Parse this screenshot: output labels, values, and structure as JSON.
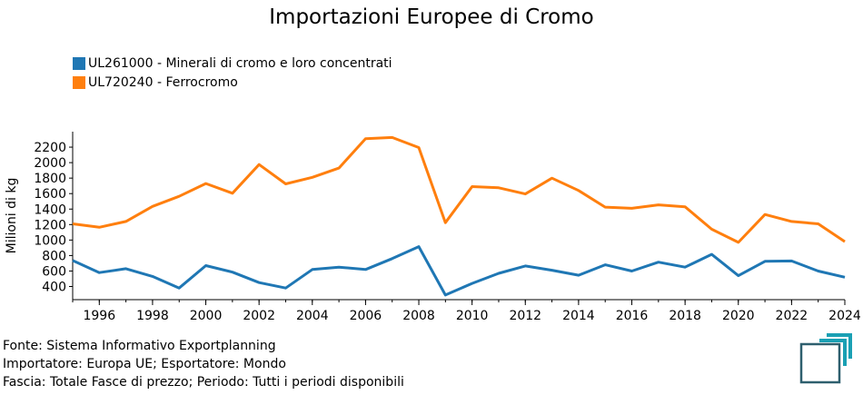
{
  "chart_data": {
    "type": "line",
    "title": "Importazioni Europee di Cromo",
    "ylabel": "Milioni di kg",
    "xlabel": "",
    "x": [
      1995,
      1996,
      1997,
      1998,
      1999,
      2000,
      2001,
      2002,
      2003,
      2004,
      2005,
      2006,
      2007,
      2008,
      2009,
      2010,
      2011,
      2012,
      2013,
      2014,
      2015,
      2016,
      2017,
      2018,
      2019,
      2020,
      2021,
      2022,
      2023,
      2024
    ],
    "x_ticks": [
      "1996",
      "1998",
      "2000",
      "2002",
      "2004",
      "2006",
      "2008",
      "2010",
      "2012",
      "2014",
      "2016",
      "2018",
      "2020",
      "2022",
      "2024"
    ],
    "y_ticks": [
      "400",
      "600",
      "800",
      "1000",
      "1200",
      "1400",
      "1600",
      "1800",
      "2000",
      "2200"
    ],
    "ylim": [
      230,
      2400
    ],
    "xlim": [
      1995,
      2024
    ],
    "grid": false,
    "legend_position": "top-left",
    "series": [
      {
        "name": "UL261000 - Minerali di cromo e loro concentrati",
        "color": "#1f77b4",
        "values": [
          735,
          580,
          630,
          530,
          380,
          670,
          585,
          450,
          380,
          620,
          650,
          620,
          760,
          915,
          290,
          440,
          570,
          665,
          610,
          545,
          680,
          600,
          715,
          650,
          815,
          540,
          725,
          730,
          600,
          520
        ]
      },
      {
        "name": "UL720240 - Ferrocromo",
        "color": "#ff7f0e",
        "values": [
          1210,
          1165,
          1240,
          1435,
          1565,
          1730,
          1605,
          1975,
          1725,
          1810,
          1930,
          2310,
          2325,
          2195,
          1225,
          1690,
          1675,
          1595,
          1800,
          1640,
          1425,
          1410,
          1455,
          1430,
          1140,
          970,
          1330,
          1240,
          1210,
          980
        ]
      }
    ]
  },
  "footer": {
    "line1": "Fonte: Sistema Informativo Exportplanning",
    "line2": "Importatore: Europa UE; Esportatore: Mondo",
    "line3": "Fascia: Totale Fasce di prezzo; Periodo: Tutti i periodi disponibili"
  },
  "logo": {
    "name": "exportplanning-logo-icon",
    "color_dark": "#2e5f6e",
    "color_accent": "#1aa0b4"
  }
}
